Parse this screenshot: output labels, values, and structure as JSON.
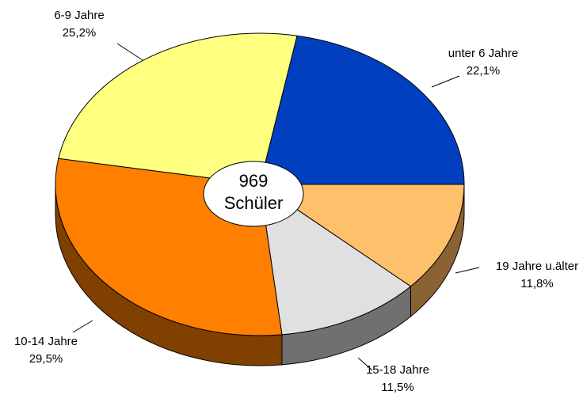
{
  "chart_data": {
    "type": "pie3d",
    "categories": [
      "unter 6 Jahre",
      "19 Jahre u.älter",
      "15-18 Jahre",
      "10-14 Jahre",
      "6-9 Jahre"
    ],
    "values": [
      22.1,
      11.8,
      11.5,
      29.5,
      25.2
    ],
    "value_labels": [
      "22,1%",
      "11,8%",
      "11,5%",
      "29,5%",
      "25,2%"
    ],
    "colors": [
      "#0040c0",
      "#ffc06c",
      "#e0e0e0",
      "#ff8000",
      "#ffff80"
    ],
    "side_colors": [
      "#002070",
      "#8a6234",
      "#707070",
      "#804000",
      "#808040"
    ],
    "annotations": [
      "969",
      "Schüler"
    ]
  }
}
